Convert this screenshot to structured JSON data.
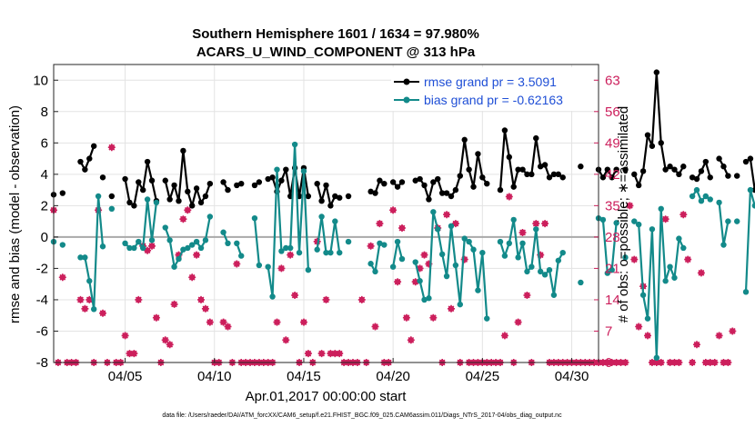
{
  "chart_data": {
    "type": "line",
    "title": "Southern Hemisphere 1601 / 1634 = 97.980%",
    "subtitle": "ACARS_U_WIND_COMPONENT @ 313 hPa",
    "xlabel": "Apr.01,2017 00:00:00 start",
    "ylabel": "rmse and bias (model - observation)",
    "ylabel_right": "# of obs: o=possible; ∗=assimilated",
    "footnote": "data file: /Users/raeder/DAI/ATM_forcXX/CAM6_setup/f.e21.FHIST_BGC.f09_025.CAM6assim.011/Diags_NTrS_2017-04/obs_diag_output.nc",
    "xlim": [
      0,
      30.5
    ],
    "ylim": [
      -8,
      11
    ],
    "ylim_right": [
      0,
      66.5
    ],
    "x_ticks": [
      4,
      9,
      14,
      19,
      24,
      29
    ],
    "x_tick_labels": [
      "04/05",
      "04/10",
      "04/15",
      "04/20",
      "04/25",
      "04/30"
    ],
    "y_ticks": [
      -8,
      -6,
      -4,
      -2,
      0,
      2,
      4,
      6,
      8,
      10
    ],
    "y_tick_labels": [
      "-8",
      "-6",
      "-4",
      "-2",
      "0",
      "2",
      "4",
      "6",
      "8",
      "10"
    ],
    "y_right_ticks": [
      0,
      7,
      14,
      21,
      28,
      35,
      42,
      49,
      56,
      63
    ],
    "y_right_tick_labels": [
      "0",
      "7",
      "14",
      "21",
      "28",
      "35",
      "42",
      "49",
      "56",
      "63"
    ],
    "x_step_days": 0.25,
    "colors": {
      "rmse": "#000000",
      "bias": "#138a8a",
      "obs": "#cc1f5c",
      "zero_line": "#a9a9a9"
    },
    "legend": {
      "position": "top-right",
      "entries": [
        "rmse grand pr = 3.5091",
        "bias grand pr = -0.62163"
      ]
    },
    "series": [
      {
        "name": "rmse grand pr = 3.5091",
        "values": [
          2.7,
          null,
          2.8,
          null,
          null,
          null,
          4.8,
          4.3,
          5.0,
          5.8,
          null,
          3.8,
          null,
          2.6,
          null,
          null,
          3.7,
          2.2,
          2.0,
          3.5,
          3.0,
          4.8,
          3.6,
          2.3,
          null,
          3.6,
          2.4,
          3.3,
          2.3,
          5.5,
          2.9,
          2.0,
          3.1,
          2.2,
          2.6,
          3.4,
          null,
          null,
          3.5,
          3.0,
          null,
          3.3,
          3.4,
          null,
          null,
          3.3,
          3.5,
          null,
          3.7,
          3.8,
          2.9,
          3.6,
          4.3,
          2.6,
          4.4,
          2.6,
          4.4,
          2.6,
          null,
          3.4,
          2.3,
          3.3,
          2.0,
          2.6,
          2.5,
          null,
          2.6,
          null,
          null,
          null,
          null,
          2.9,
          2.8,
          3.6,
          3.4,
          null,
          3.5,
          3.2,
          3.5,
          null,
          null,
          3.6,
          3.7,
          3.3,
          2.4,
          3.5,
          3.7,
          2.8,
          2.8,
          2.6,
          3.0,
          3.9,
          6.2,
          4.3,
          3.2,
          5.3,
          3.8,
          3.4,
          null,
          null,
          3.0,
          6.8,
          5.1,
          3.2,
          4.3,
          4.3,
          4.0,
          4.0,
          6.3,
          4.5,
          4.6,
          3.8,
          4.0,
          4.0,
          3.8,
          null,
          null,
          null,
          4.5,
          null,
          null,
          null,
          4.3,
          3.8,
          4.3,
          3.8,
          4.3,
          null,
          4.3,
          null,
          4.0,
          3.3,
          4.2,
          6.5,
          5.8,
          10.5,
          6.0,
          4.3,
          4.5,
          4.3,
          4.0,
          4.5,
          null,
          3.8,
          3.7,
          4.2,
          4.8,
          3.8,
          null,
          5.0,
          4.5,
          3.9,
          null,
          3.9,
          null,
          4.8,
          5.0,
          3.0
        ],
        "counts": []
      },
      {
        "name": "bias grand pr = -0.62163",
        "values": [
          -0.3,
          null,
          -0.5,
          null,
          null,
          null,
          -1.3,
          -1.3,
          -2.8,
          -4.6,
          2.6,
          -0.6,
          null,
          1.8,
          null,
          null,
          -0.4,
          -0.7,
          -0.7,
          -0.3,
          -0.7,
          2.4,
          -0.2,
          2.2,
          null,
          0.6,
          -0.2,
          -1.9,
          -1.4,
          -0.8,
          -0.7,
          -0.5,
          -0.3,
          -0.7,
          -0.2,
          1.3,
          null,
          null,
          0.3,
          -0.4,
          null,
          -0.4,
          -1.2,
          null,
          null,
          1.2,
          -1.8,
          null,
          -1.9,
          -3.8,
          4.3,
          -0.9,
          -0.7,
          -0.7,
          5.9,
          -1.0,
          4.2,
          -2.1,
          null,
          -0.8,
          1.3,
          -1.0,
          -1.0,
          1.0,
          -1.0,
          null,
          -0.3,
          null,
          null,
          null,
          null,
          -1.7,
          -2.2,
          -0.4,
          -0.5,
          null,
          -1.9,
          -0.3,
          -1.4,
          null,
          null,
          -1.6,
          -2.8,
          -4.0,
          -3.9,
          1.6,
          0.5,
          -1.1,
          -2.5,
          0.7,
          -1.8,
          -4.3,
          -0.1,
          -0.3,
          -0.8,
          -3.4,
          -1.0,
          -5.2,
          null,
          null,
          -0.3,
          -1.2,
          -0.4,
          1.1,
          -1.3,
          -0.4,
          -2.2,
          -1.9,
          0.5,
          -2.2,
          -2.4,
          -2.1,
          -3.7,
          -1.5,
          -1.0,
          null,
          null,
          null,
          -2.9,
          null,
          null,
          null,
          1.2,
          1.1,
          -2.3,
          -2.1,
          0.9,
          null,
          -1.3,
          null,
          1.0,
          0.8,
          -3.7,
          -5.2,
          0.5,
          -7.7,
          1.8,
          -2.8,
          -1.9,
          -2.6,
          -0.1,
          -0.7,
          null,
          2.6,
          3.0,
          2.3,
          2.6,
          2.4,
          null,
          2.2,
          -0.5,
          1.0,
          null,
          1.0,
          null,
          -3.5,
          3.0,
          2.0
        ],
        "counts": []
      }
    ],
    "obs": {
      "description": "# of obs (right axis): o = possible, * = assimilated",
      "possible": [
        34,
        0,
        19,
        0,
        0,
        0,
        14,
        12,
        14,
        0,
        34,
        11,
        0,
        48,
        0,
        0,
        6,
        2,
        2,
        14,
        26,
        25,
        26,
        10,
        0,
        5,
        4,
        13,
        24,
        32,
        34,
        19,
        24,
        14,
        12,
        9,
        0,
        0,
        9,
        8,
        0,
        22,
        0,
        0,
        0,
        0,
        0,
        0,
        0,
        0,
        9,
        21,
        5,
        24,
        15,
        0,
        9,
        2,
        0,
        27,
        2,
        14,
        2,
        2,
        2,
        0,
        0,
        0,
        0,
        14,
        0,
        26,
        8,
        31,
        0,
        0,
        34,
        18,
        30,
        10,
        5,
        18,
        21,
        24,
        22,
        10,
        30,
        0,
        33,
        12,
        31,
        0,
        23,
        0,
        0,
        0,
        0,
        0,
        0,
        0,
        0,
        6,
        37,
        0,
        9,
        29,
        15,
        0,
        31,
        24,
        31,
        0,
        0,
        0,
        0,
        0,
        0,
        0,
        0,
        0,
        0,
        0,
        0,
        0,
        0,
        0,
        0,
        0,
        0,
        35,
        23,
        8,
        17,
        6,
        0,
        0,
        0,
        32,
        0,
        0,
        0,
        33,
        23,
        0,
        4,
        20,
        0,
        0,
        0,
        6,
        0,
        0,
        7
      ],
      "assimilated": [
        34,
        0,
        19,
        0,
        0,
        0,
        14,
        12,
        14,
        0,
        34,
        11,
        0,
        48,
        0,
        0,
        6,
        2,
        2,
        14,
        26,
        25,
        26,
        10,
        0,
        5,
        4,
        13,
        24,
        32,
        34,
        19,
        24,
        14,
        12,
        9,
        0,
        0,
        9,
        8,
        0,
        22,
        0,
        0,
        0,
        0,
        0,
        0,
        0,
        0,
        9,
        21,
        5,
        24,
        15,
        0,
        9,
        2,
        0,
        27,
        2,
        14,
        2,
        2,
        2,
        0,
        0,
        0,
        0,
        14,
        0,
        26,
        8,
        31,
        0,
        0,
        34,
        18,
        30,
        10,
        5,
        18,
        21,
        24,
        22,
        10,
        30,
        0,
        33,
        12,
        31,
        0,
        23,
        0,
        0,
        0,
        0,
        0,
        0,
        0,
        0,
        6,
        37,
        0,
        9,
        29,
        15,
        0,
        31,
        24,
        31,
        0,
        0,
        0,
        0,
        0,
        0,
        0,
        0,
        0,
        0,
        0,
        0,
        0,
        0,
        0,
        0,
        0,
        0,
        35,
        23,
        8,
        17,
        6,
        0,
        0,
        0,
        32,
        0,
        0,
        0,
        33,
        23,
        0,
        4,
        20,
        0,
        0,
        0,
        6,
        0,
        0,
        7
      ]
    }
  }
}
